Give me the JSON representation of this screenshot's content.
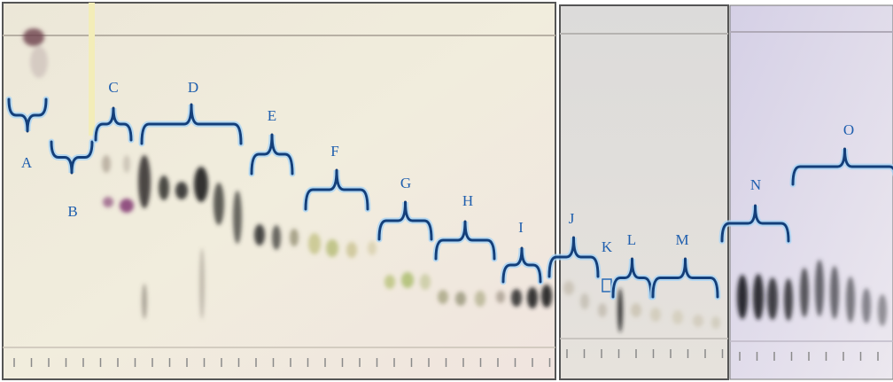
{
  "labels": [
    "A",
    "B",
    "C",
    "D",
    "E",
    "F",
    "G",
    "H",
    "I",
    "J",
    "K",
    "L",
    "M",
    "N",
    "O"
  ]
}
